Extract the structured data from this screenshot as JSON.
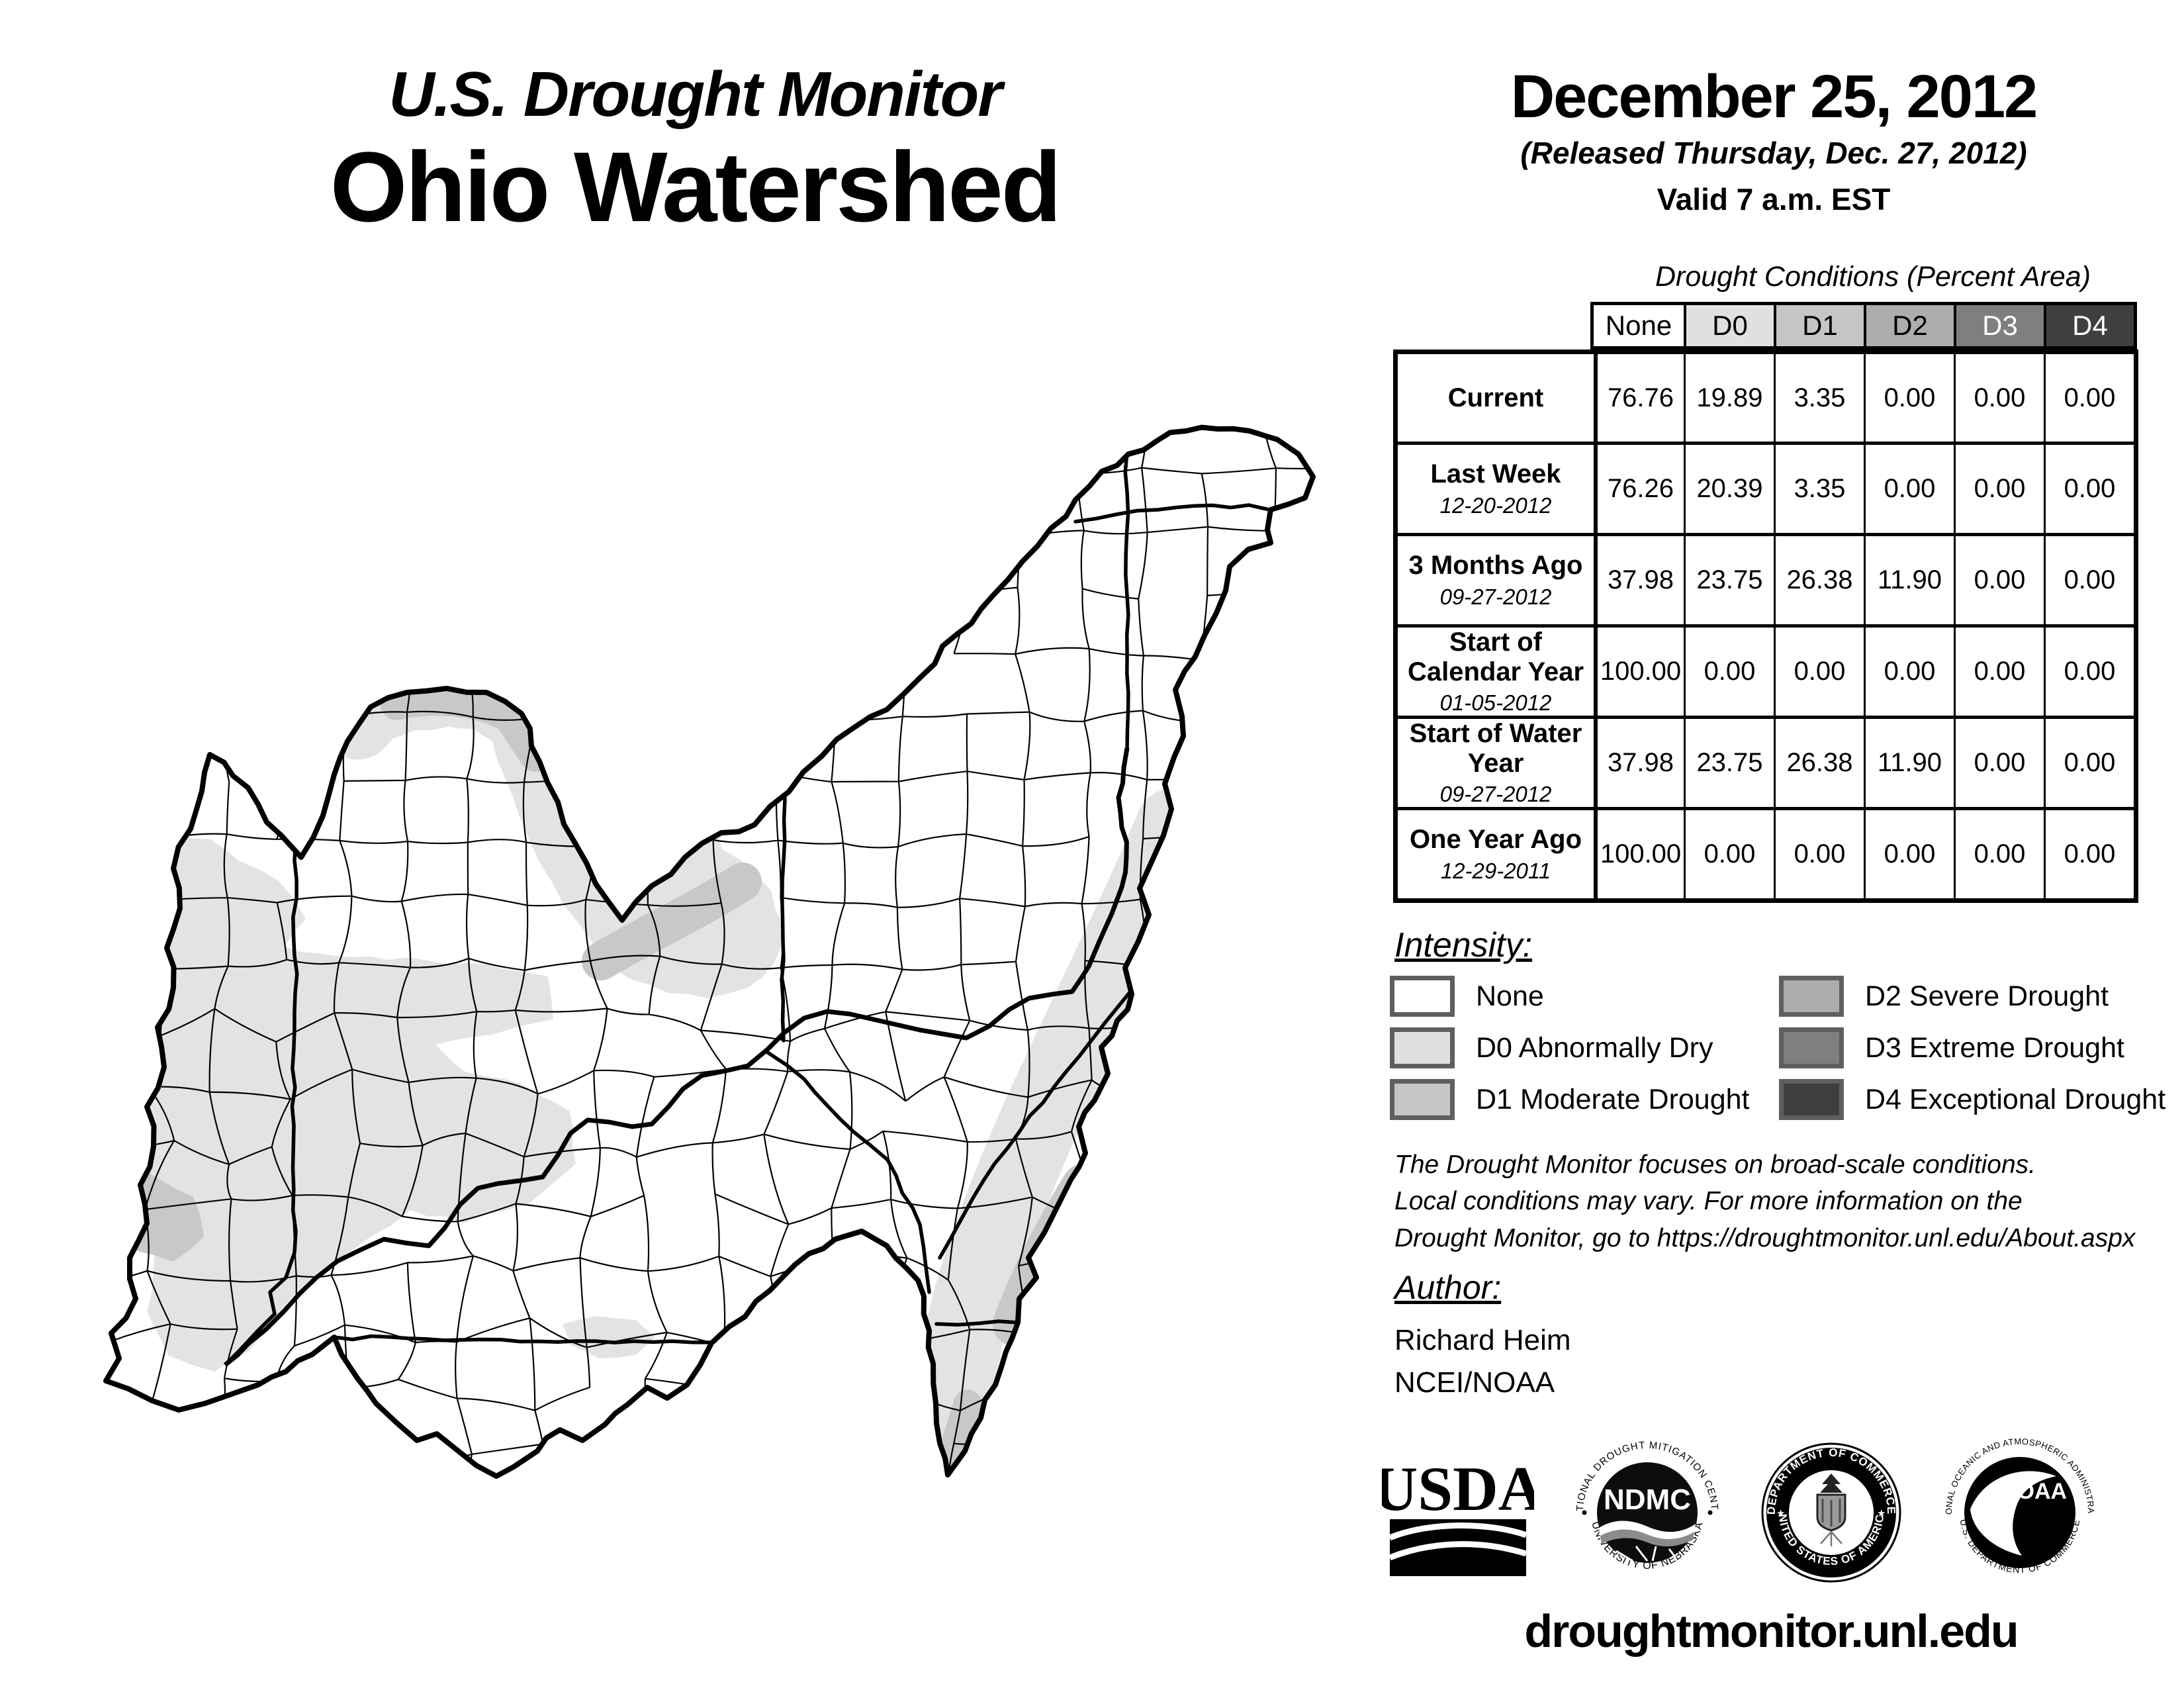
{
  "header": {
    "title_line1": "U.S. Drought Monitor",
    "title_line2": "Ohio Watershed",
    "date": "December 25, 2012",
    "released": "(Released Thursday, Dec. 27, 2012)",
    "valid": "Valid 7 a.m. EST"
  },
  "table": {
    "title": "Drought Conditions (Percent Area)",
    "columns": [
      "None",
      "D0",
      "D1",
      "D2",
      "D3",
      "D4"
    ],
    "column_colors": [
      "#FFFFFF",
      "#E0E0E0",
      "#C6C6C6",
      "#ADADAD",
      "#7F7F7F",
      "#3F3F3F"
    ],
    "rows": [
      {
        "label": "Current",
        "date": "",
        "values": [
          "76.76",
          "19.89",
          "3.35",
          "0.00",
          "0.00",
          "0.00"
        ]
      },
      {
        "label": "Last Week",
        "date": "12-20-2012",
        "values": [
          "76.26",
          "20.39",
          "3.35",
          "0.00",
          "0.00",
          "0.00"
        ]
      },
      {
        "label": "3 Months Ago",
        "date": "09-27-2012",
        "values": [
          "37.98",
          "23.75",
          "26.38",
          "11.90",
          "0.00",
          "0.00"
        ]
      },
      {
        "label": "Start of Calendar Year",
        "date": "01-05-2012",
        "values": [
          "100.00",
          "0.00",
          "0.00",
          "0.00",
          "0.00",
          "0.00"
        ]
      },
      {
        "label": "Start of Water Year",
        "date": "09-27-2012",
        "values": [
          "37.98",
          "23.75",
          "26.38",
          "11.90",
          "0.00",
          "0.00"
        ]
      },
      {
        "label": "One Year Ago",
        "date": "12-29-2011",
        "values": [
          "100.00",
          "0.00",
          "0.00",
          "0.00",
          "0.00",
          "0.00"
        ]
      }
    ]
  },
  "legend": {
    "title": "Intensity:",
    "items": [
      {
        "label": "None",
        "color": "#FFFFFF"
      },
      {
        "label": "D0 Abnormally Dry",
        "color": "#E0E0E0"
      },
      {
        "label": "D1 Moderate Drought",
        "color": "#C6C6C6"
      },
      {
        "label": "D2 Severe Drought",
        "color": "#ADADAD"
      },
      {
        "label": "D3 Extreme Drought",
        "color": "#7F7F7F"
      },
      {
        "label": "D4 Exceptional Drought",
        "color": "#3F3F3F"
      }
    ]
  },
  "map": {
    "d0_color": "#E3E3E3",
    "d1_color": "#C8C8C8"
  },
  "disclaimer": {
    "line1": "The Drought Monitor focuses on broad-scale conditions.",
    "line2": "Local conditions may vary. For more information on the",
    "line3": "Drought Monitor, go to https://droughtmonitor.unl.edu/About.aspx"
  },
  "author": {
    "title": "Author:",
    "name": "Richard Heim",
    "org": "NCEI/NOAA"
  },
  "logos": {
    "usda": "USDA",
    "ndmc_center": "NDMC",
    "ndmc_top": "NATIONAL DROUGHT MITIGATION CENTER",
    "ndmc_bottom": "UNIVERSITY OF NEBRASKA",
    "doc_top": "DEPARTMENT OF COMMERCE",
    "doc_bottom": "UNITED STATES OF AMERICA",
    "noaa_center": "NOAA",
    "noaa_top": "NATIONAL OCEANIC AND ATMOSPHERIC ADMINISTRATION",
    "noaa_bottom": "U.S. DEPARTMENT OF COMMERCE"
  },
  "footer": {
    "url": "droughtmonitor.unl.edu"
  }
}
